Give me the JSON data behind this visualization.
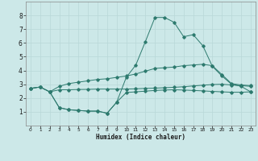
{
  "xlabel": "Humidex (Indice chaleur)",
  "xlim": [
    -0.5,
    23.5
  ],
  "ylim": [
    0,
    9
  ],
  "xticks": [
    0,
    1,
    2,
    3,
    4,
    5,
    6,
    7,
    8,
    9,
    10,
    11,
    12,
    13,
    14,
    15,
    16,
    17,
    18,
    19,
    20,
    21,
    22,
    23
  ],
  "yticks": [
    1,
    2,
    3,
    4,
    5,
    6,
    7,
    8
  ],
  "background_color": "#cce8e8",
  "grid_color": "#b8d8d8",
  "line_color": "#2d7a6e",
  "line1_x": [
    0,
    1,
    2,
    3,
    4,
    5,
    6,
    7,
    8,
    9,
    10,
    11,
    12,
    13,
    14,
    15,
    16,
    17,
    18,
    19,
    20,
    21,
    22,
    23
  ],
  "line1_y": [
    2.7,
    2.8,
    2.45,
    2.6,
    2.6,
    2.62,
    2.63,
    2.65,
    2.65,
    2.65,
    2.65,
    2.67,
    2.7,
    2.72,
    2.75,
    2.78,
    2.82,
    2.88,
    2.93,
    2.98,
    3.0,
    2.95,
    2.9,
    2.85
  ],
  "line2_x": [
    0,
    1,
    2,
    3,
    4,
    5,
    6,
    7,
    8,
    9,
    10,
    11,
    12,
    13,
    14,
    15,
    16,
    17,
    18,
    19,
    20,
    21,
    22,
    23
  ],
  "line2_y": [
    2.7,
    2.8,
    2.45,
    2.85,
    3.05,
    3.15,
    3.25,
    3.35,
    3.4,
    3.5,
    3.6,
    3.75,
    3.95,
    4.15,
    4.2,
    4.25,
    4.35,
    4.4,
    4.45,
    4.35,
    3.7,
    3.05,
    2.95,
    2.9
  ],
  "line3_x": [
    0,
    1,
    2,
    3,
    4,
    5,
    6,
    7,
    8,
    9,
    10,
    11,
    12,
    13,
    14,
    15,
    16,
    17,
    18,
    19,
    20,
    21,
    22,
    23
  ],
  "line3_y": [
    2.7,
    2.8,
    2.45,
    1.3,
    1.15,
    1.1,
    1.05,
    1.05,
    0.9,
    1.7,
    3.5,
    4.4,
    6.1,
    7.85,
    7.85,
    7.5,
    6.45,
    6.6,
    5.8,
    4.3,
    3.6,
    3.0,
    2.85,
    2.45
  ],
  "line4_x": [
    2,
    3,
    4,
    5,
    6,
    7,
    8,
    9,
    10,
    11,
    12,
    13,
    14,
    15,
    16,
    17,
    18,
    19,
    20,
    21,
    22,
    23
  ],
  "line4_y": [
    2.45,
    1.3,
    1.15,
    1.1,
    1.05,
    1.05,
    0.9,
    1.7,
    2.4,
    2.45,
    2.5,
    2.55,
    2.58,
    2.6,
    2.58,
    2.55,
    2.52,
    2.48,
    2.45,
    2.42,
    2.42,
    2.45
  ]
}
